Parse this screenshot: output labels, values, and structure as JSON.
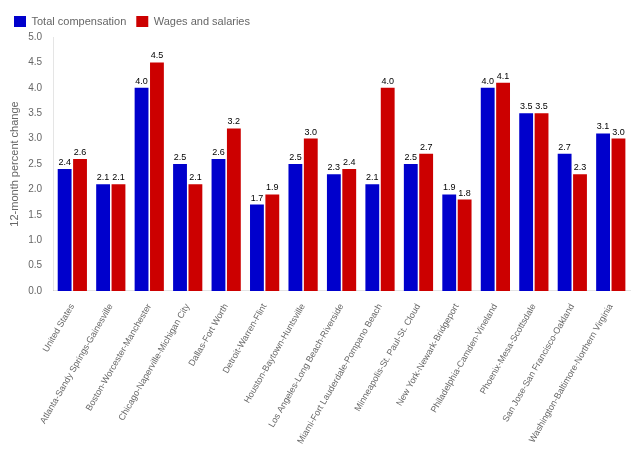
{
  "chart_data": {
    "type": "bar",
    "categories": [
      "United States",
      "Atlanta-Sandy Springs-Gainesville",
      "Boston-Worcester-Manchester",
      "Chicago-Naperville-Michigan City",
      "Dallas-Fort Worth",
      "Detroit-Warren-Flint",
      "Houston-Baytown-Huntsville",
      "Los Angeles-Long Beach-Riverside",
      "Miami-Fort Lauderdale-Pompano Beach",
      "Minneapolis-St. Paul-St. Cloud",
      "New York-Newark-Bridgeport",
      "Philadelphia-Camden-Vineland",
      "Phoenix-Mesa-Scottsdale",
      "San Jose-San Francisco-Oakland",
      "Washington-Baltimore-Northern Virginia"
    ],
    "series": [
      {
        "name": "Total compensation",
        "color": "#0000CC",
        "values": [
          2.4,
          2.1,
          4.0,
          2.5,
          2.6,
          1.7,
          2.5,
          2.3,
          2.1,
          2.5,
          1.9,
          4.0,
          3.5,
          2.7,
          3.1
        ],
        "value_labels": [
          "2.4",
          "2.1",
          "4.0",
          "2.5",
          "2.6",
          "1.7",
          "2.5",
          "2.3",
          "2.1",
          "2.5",
          "1.9",
          "4.0",
          "3.5",
          "2.7",
          "3.1"
        ]
      },
      {
        "name": "Wages and salaries",
        "color": "#CC0000",
        "values": [
          2.6,
          2.1,
          4.5,
          2.1,
          3.2,
          1.9,
          3.0,
          2.4,
          4.0,
          2.7,
          1.8,
          4.1,
          3.5,
          2.3,
          3.0
        ],
        "value_labels": [
          "2.6",
          "2.1",
          "4.5",
          "2.1",
          "3.2",
          "1.9",
          "3.0",
          "2.4",
          "4.0",
          "2.7",
          "1.8",
          "4.1",
          "3.5",
          "2.3",
          "3.0"
        ]
      }
    ],
    "ylabel": "12-month percent change",
    "ylim": [
      0.0,
      5.0
    ],
    "yticks": [
      {
        "value": 0,
        "label": "0.0"
      },
      0.5,
      {
        "value": 1,
        "label": "1.0"
      },
      1.5,
      {
        "value": 2,
        "label": "2.0"
      },
      2.5,
      {
        "value": 3,
        "label": "3.0"
      },
      3.5,
      {
        "value": 4,
        "label": "4.0"
      },
      4.5,
      {
        "value": 5,
        "label": "5.0"
      }
    ],
    "grid": false,
    "legend": "upper left",
    "data_labels": true
  }
}
